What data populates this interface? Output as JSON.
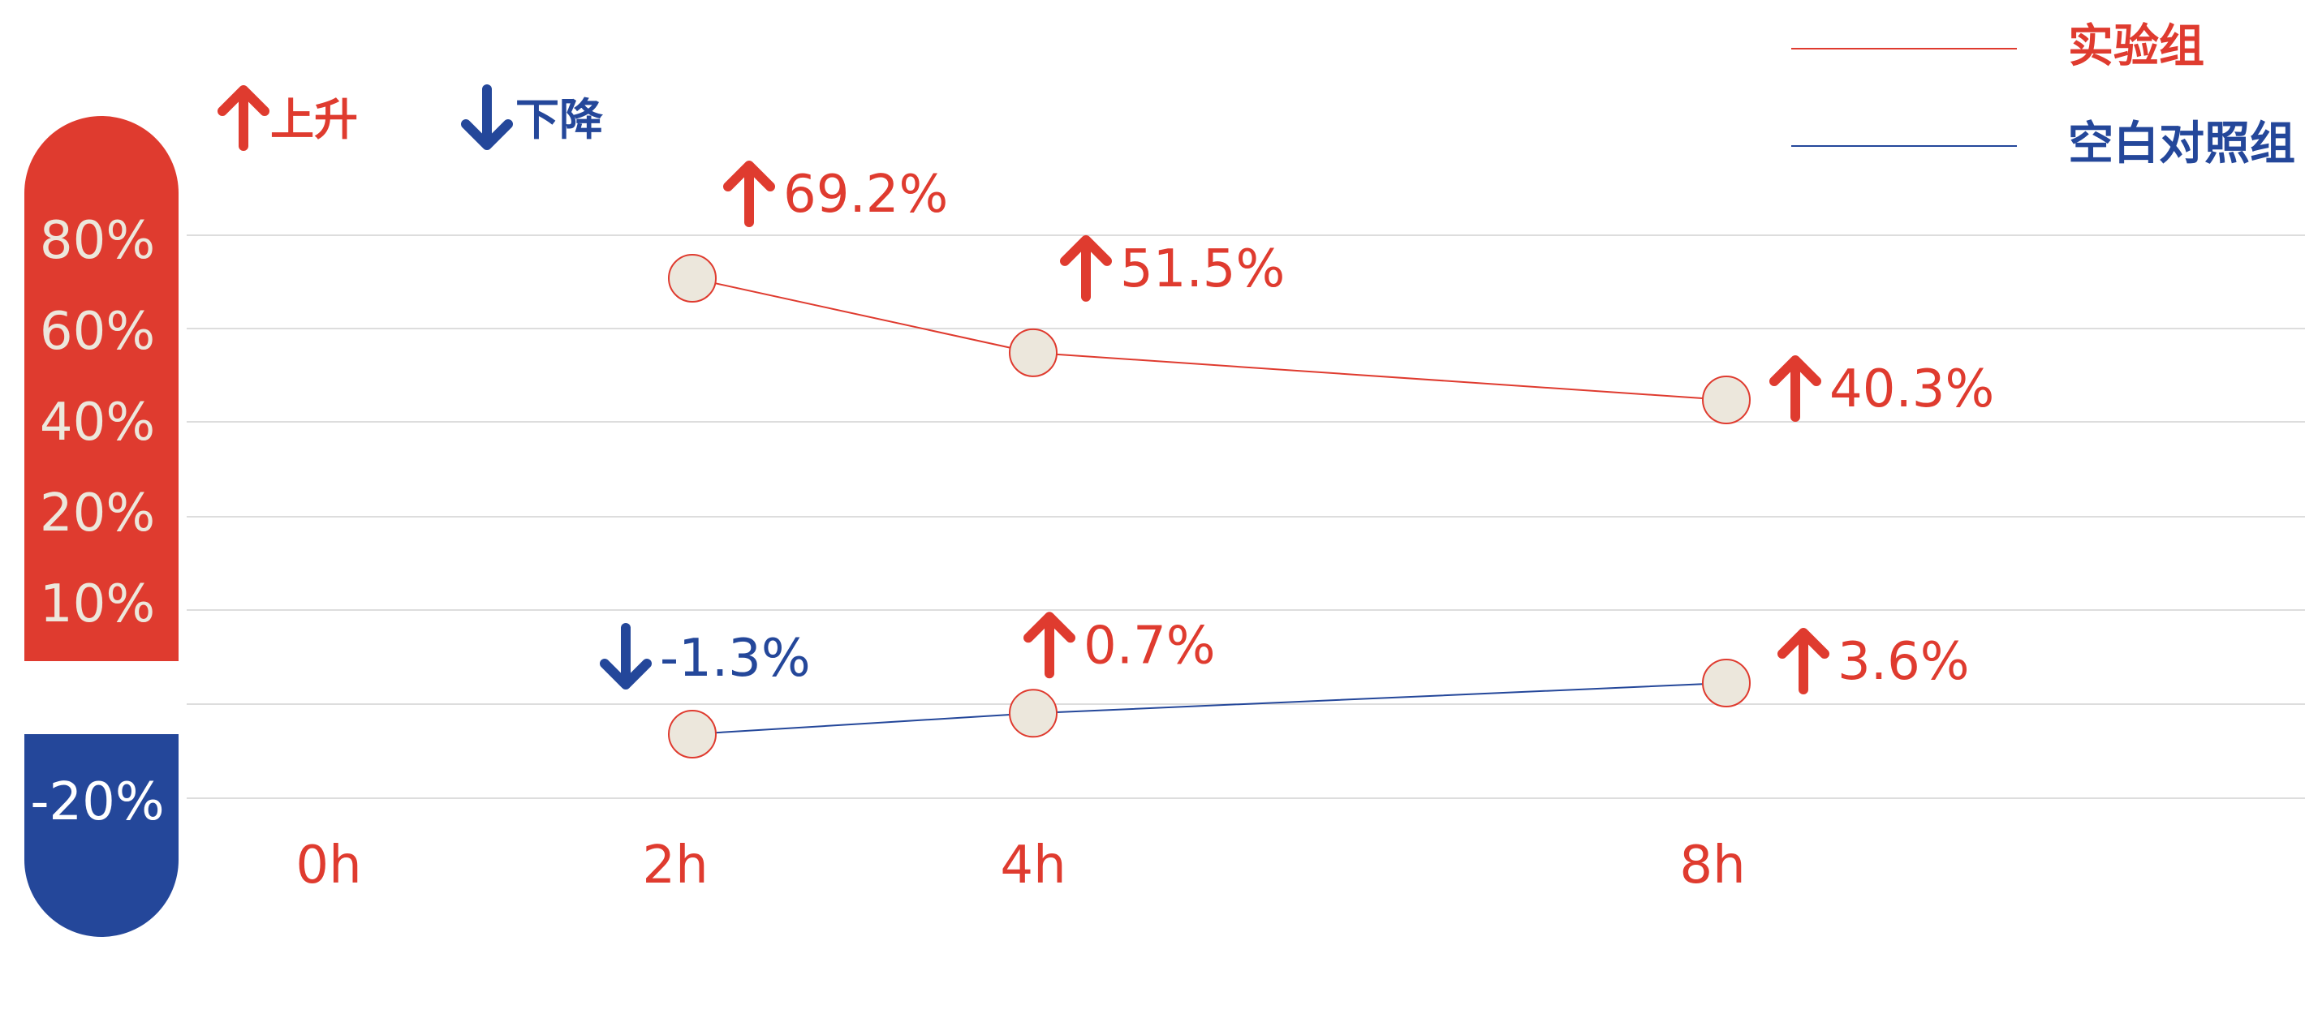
{
  "chart_data": {
    "type": "line",
    "x": [
      "0h",
      "2h",
      "4h",
      "8h"
    ],
    "y_ticks": [
      "80%",
      "60%",
      "40%",
      "20%",
      "10%",
      "-20%"
    ],
    "direction_key": {
      "up": "上升",
      "down": "下降"
    },
    "series": [
      {
        "name": "实验组",
        "color": "#df3b2f",
        "points": [
          {
            "x": "2h",
            "value": 69.2,
            "label": "69.2%",
            "direction": "up"
          },
          {
            "x": "4h",
            "value": 51.5,
            "label": "51.5%",
            "direction": "up"
          },
          {
            "x": "8h",
            "value": 40.3,
            "label": "40.3%",
            "direction": "up"
          }
        ]
      },
      {
        "name": "空白对照组",
        "color": "#24479a",
        "points": [
          {
            "x": "2h",
            "value": -1.3,
            "label": "-1.3%",
            "direction": "down"
          },
          {
            "x": "4h",
            "value": 0.7,
            "label": "0.7%",
            "direction": "up"
          },
          {
            "x": "8h",
            "value": 3.6,
            "label": "3.6%",
            "direction": "up"
          }
        ]
      }
    ],
    "grid": true,
    "legend_position": "top-right",
    "colors": {
      "up": "#df3b2f",
      "down": "#24479a",
      "marker_fill": "#ece7dc",
      "grid": "#dddddd"
    }
  }
}
